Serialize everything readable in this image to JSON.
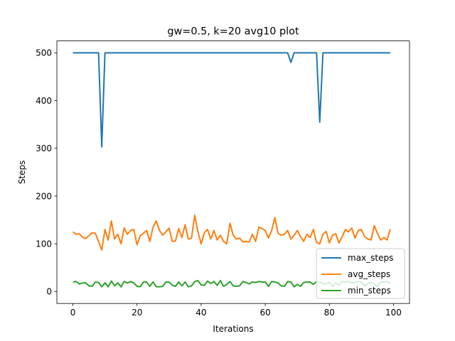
{
  "chart_data": {
    "type": "line",
    "title": "gw=0.5, k=20 avg10 plot",
    "xlabel": "Iterations",
    "ylabel": "Steps",
    "xlim": [
      -5,
      105
    ],
    "ylim": [
      -25,
      525
    ],
    "xticks": [
      0,
      20,
      40,
      60,
      80,
      100
    ],
    "yticks": [
      0,
      100,
      200,
      300,
      400,
      500
    ],
    "grid": false,
    "legend_position": "lower-right",
    "x": [
      0,
      1,
      2,
      3,
      4,
      5,
      6,
      7,
      8,
      9,
      10,
      11,
      12,
      13,
      14,
      15,
      16,
      17,
      18,
      19,
      20,
      21,
      22,
      23,
      24,
      25,
      26,
      27,
      28,
      29,
      30,
      31,
      32,
      33,
      34,
      35,
      36,
      37,
      38,
      39,
      40,
      41,
      42,
      43,
      44,
      45,
      46,
      47,
      48,
      49,
      50,
      51,
      52,
      53,
      54,
      55,
      56,
      57,
      58,
      59,
      60,
      61,
      62,
      63,
      64,
      65,
      66,
      67,
      68,
      69,
      70,
      71,
      72,
      73,
      74,
      75,
      76,
      77,
      78,
      79,
      80,
      81,
      82,
      83,
      84,
      85,
      86,
      87,
      88,
      89,
      90,
      91,
      92,
      93,
      94,
      95,
      96,
      97,
      98,
      99
    ],
    "series": [
      {
        "name": "max_steps",
        "color": "#1f77b4",
        "values": [
          500,
          500,
          500,
          500,
          500,
          500,
          500,
          500,
          500,
          303,
          500,
          500,
          500,
          500,
          500,
          500,
          500,
          500,
          500,
          500,
          500,
          500,
          500,
          500,
          500,
          500,
          500,
          500,
          500,
          500,
          500,
          500,
          500,
          500,
          500,
          500,
          500,
          500,
          500,
          500,
          500,
          500,
          500,
          500,
          500,
          500,
          500,
          500,
          500,
          500,
          500,
          500,
          500,
          500,
          500,
          500,
          500,
          500,
          500,
          500,
          500,
          500,
          500,
          500,
          500,
          500,
          500,
          500,
          480,
          500,
          500,
          500,
          500,
          500,
          500,
          500,
          500,
          355,
          500,
          500,
          500,
          500,
          500,
          500,
          500,
          500,
          500,
          500,
          500,
          500,
          500,
          500,
          500,
          500,
          500,
          500,
          500,
          500,
          500,
          500
        ]
      },
      {
        "name": "avg_steps",
        "color": "#ff7f0e",
        "values": [
          125,
          120,
          121,
          114,
          111,
          117,
          123,
          122,
          105,
          87,
          130,
          108,
          148,
          110,
          120,
          100,
          133,
          120,
          128,
          130,
          98,
          117,
          122,
          128,
          105,
          135,
          148,
          128,
          118,
          125,
          133,
          105,
          106,
          132,
          113,
          140,
          110,
          112,
          160,
          125,
          100,
          123,
          130,
          110,
          128,
          108,
          118,
          105,
          100,
          143,
          118,
          110,
          112,
          104,
          105,
          104,
          120,
          105,
          135,
          132,
          128,
          112,
          128,
          155,
          122,
          118,
          120,
          128,
          110,
          118,
          128,
          115,
          105,
          120,
          113,
          130,
          103,
          100,
          120,
          126,
          102,
          118,
          121,
          102,
          115,
          130,
          125,
          133,
          112,
          128,
          130,
          115,
          110,
          108,
          138,
          122,
          108,
          113,
          108,
          131
        ]
      },
      {
        "name": "min_steps",
        "color": "#2ca02c",
        "values": [
          20,
          21,
          16,
          18,
          18,
          12,
          11,
          20,
          19,
          10,
          18,
          10,
          22,
          12,
          18,
          10,
          21,
          18,
          21,
          18,
          11,
          10,
          20,
          20,
          11,
          20,
          10,
          10,
          11,
          20,
          20,
          13,
          11,
          20,
          12,
          20,
          10,
          12,
          21,
          23,
          14,
          13,
          22,
          17,
          21,
          13,
          23,
          11,
          15,
          21,
          12,
          11,
          12,
          21,
          19,
          16,
          20,
          19,
          21,
          20,
          20,
          11,
          21,
          20,
          18,
          12,
          11,
          21,
          20,
          10,
          15,
          11,
          19,
          20,
          20,
          15,
          21,
          20,
          17,
          16,
          19,
          11,
          18,
          13,
          21,
          20,
          21,
          18,
          19,
          21,
          20,
          12,
          17,
          19,
          15,
          11,
          20,
          20,
          21,
          17
        ]
      }
    ]
  }
}
